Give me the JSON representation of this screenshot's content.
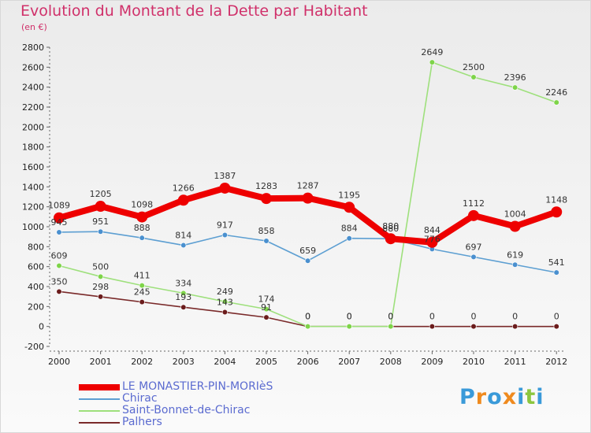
{
  "title": "Evolution du Montant de la Dette par Habitant",
  "unit": "(en €)",
  "logo": {
    "letters": [
      "P",
      "r",
      "o",
      "x",
      "i",
      "t",
      "i"
    ],
    "colors": [
      "#3a9ad9",
      "#ef8a1e",
      "#3a9ad9",
      "#ef8a1e",
      "#3a9ad9",
      "#8cc63f",
      "#3a9ad9"
    ]
  },
  "chart_data": {
    "type": "line",
    "x": [
      "2000",
      "2001",
      "2002",
      "2003",
      "2004",
      "2005",
      "2006",
      "2007",
      "2008",
      "2009",
      "2010",
      "2011",
      "2012"
    ],
    "ylim": [
      -200,
      2800
    ],
    "yticks": [
      -200,
      0,
      200,
      400,
      600,
      800,
      1000,
      1200,
      1400,
      1600,
      1800,
      2000,
      2200,
      2400,
      2600,
      2800
    ],
    "grid": false,
    "legend": "bottom-left",
    "series": [
      {
        "name": "LE MONASTIER-PIN-MORIèS",
        "color": "#ee0000",
        "marker_color": "#ee0000",
        "values": [
          1089,
          1205,
          1098,
          1266,
          1387,
          1283,
          1287,
          1195,
          880,
          844,
          1112,
          1004,
          1148
        ]
      },
      {
        "name": "Chirac",
        "color": "#5d9fd2",
        "marker_color": "#4a90cf",
        "values": [
          945,
          951,
          888,
          814,
          917,
          858,
          659,
          884,
          880,
          776,
          697,
          619,
          541
        ]
      },
      {
        "name": "Saint-Bonnet-de-Chirac",
        "color": "#9ee07c",
        "marker_color": "#7ed449",
        "values": [
          609,
          500,
          411,
          334,
          249,
          174,
          0,
          0,
          0,
          2649,
          2500,
          2396,
          2246
        ]
      },
      {
        "name": "Palhers",
        "color": "#7a2a2a",
        "marker_color": "#6b1c1c",
        "values": [
          350,
          298,
          245,
          193,
          143,
          91,
          0,
          0,
          0,
          0,
          0,
          0,
          0
        ]
      }
    ]
  }
}
